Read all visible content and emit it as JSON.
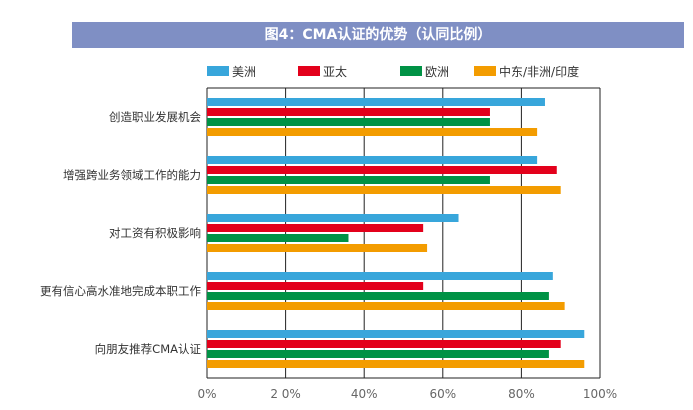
{
  "chart_data": {
    "type": "bar",
    "orientation": "horizontal",
    "title": "图4：CMA认证的优势（认同比例）",
    "categories": [
      "创造职业发展机会",
      "增强跨业务领域工作的能力",
      "对工资有积极影响",
      "更有信心高水准地完成本职工作",
      "向朋友推荐CMA认证"
    ],
    "series": [
      {
        "name": "美洲",
        "color": "#38a6db",
        "values": [
          86,
          84,
          64,
          88,
          96
        ]
      },
      {
        "name": "亚太",
        "color": "#e3001b",
        "values": [
          72,
          89,
          55,
          55,
          90
        ]
      },
      {
        "name": "欧洲",
        "color": "#009245",
        "values": [
          72,
          72,
          36,
          87,
          87
        ]
      },
      {
        "name": "中东/非洲/印度",
        "color": "#f39c00",
        "values": [
          84,
          90,
          56,
          91,
          96
        ]
      }
    ],
    "x_ticks": [
      "0%",
      "2 0%",
      "40%",
      "60%",
      "80%",
      "100%"
    ],
    "xlim": [
      0,
      100
    ],
    "grid": true,
    "legend_position": "top"
  }
}
